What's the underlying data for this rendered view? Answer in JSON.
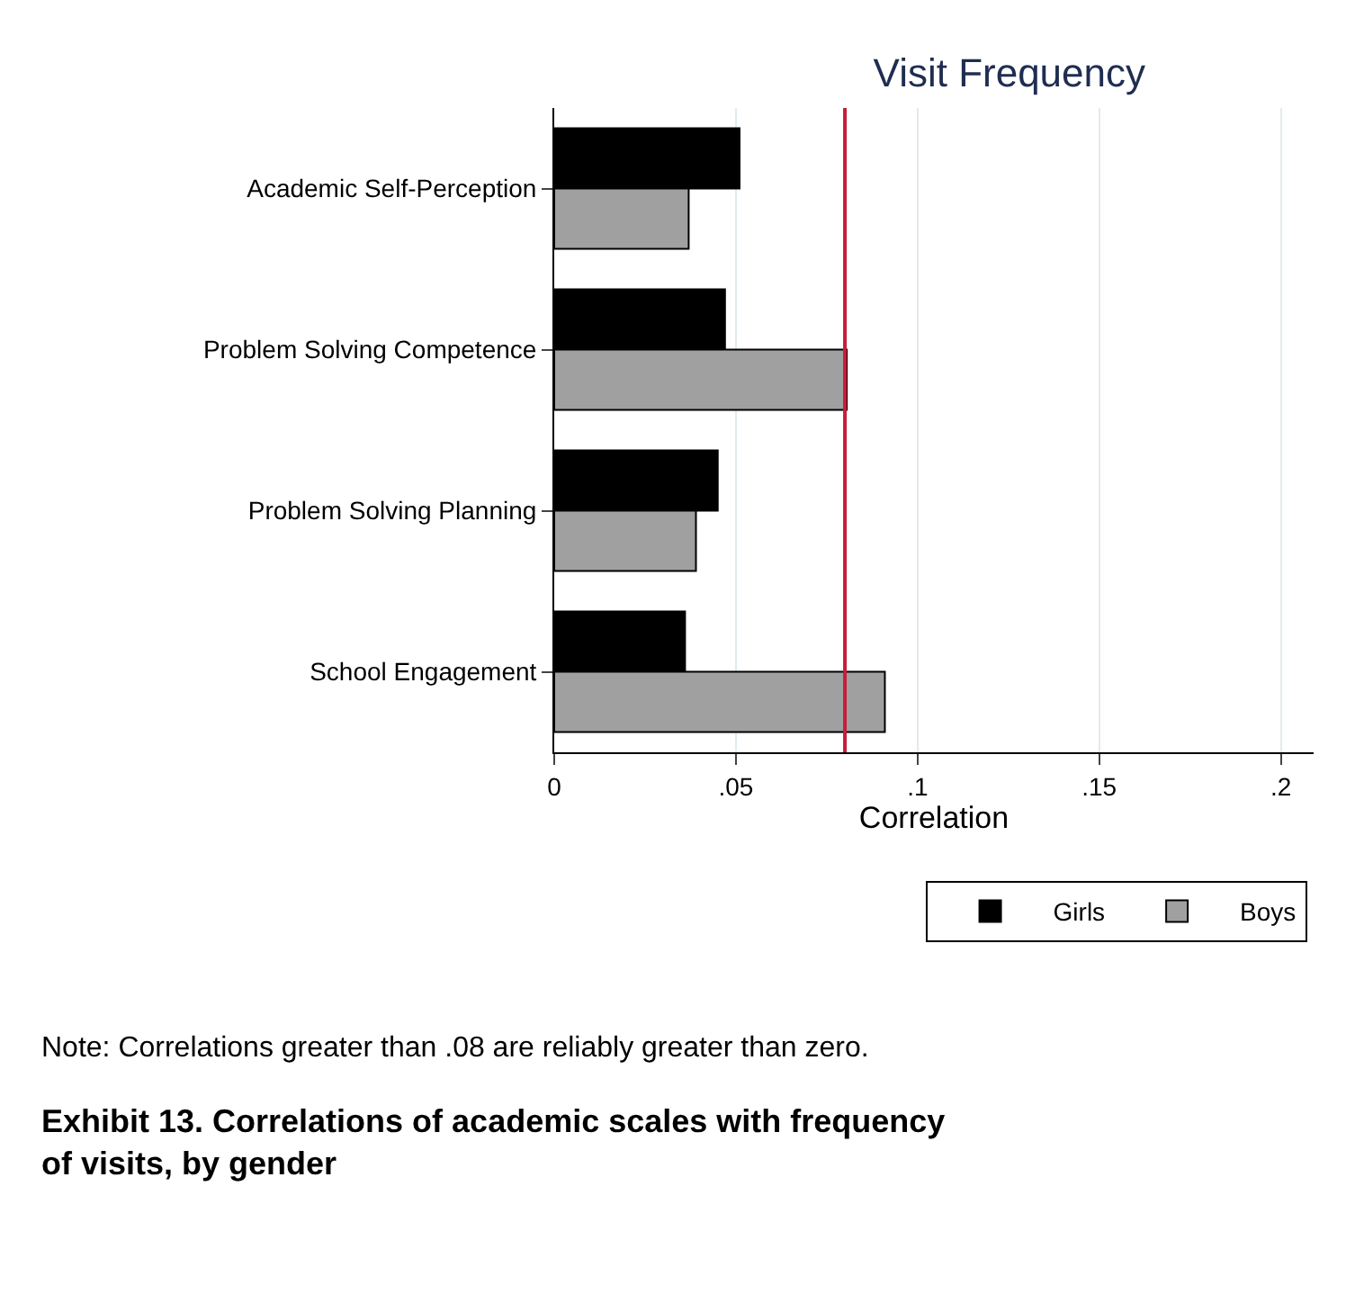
{
  "chart_data": {
    "type": "bar",
    "orientation": "horizontal",
    "title": "Visit Frequency",
    "xlabel": "Correlation",
    "categories": [
      "Academic Self-Perception",
      "Problem Solving Competence",
      "Problem Solving Planning",
      "School Engagement"
    ],
    "series": [
      {
        "name": "Girls",
        "color": "#000000",
        "values": [
          0.051,
          0.047,
          0.045,
          0.036
        ]
      },
      {
        "name": "Boys",
        "color": "#a0a0a0",
        "values": [
          0.037,
          0.0805,
          0.039,
          0.091
        ]
      }
    ],
    "xlim": [
      0,
      0.209
    ],
    "xticks": [
      {
        "value": 0,
        "label": "0"
      },
      {
        "value": 0.05,
        "label": ".05"
      },
      {
        "value": 0.1,
        "label": ".1"
      },
      {
        "value": 0.15,
        "label": ".15"
      },
      {
        "value": 0.2,
        "label": ".2"
      }
    ],
    "grid": "x",
    "legend": "bottom",
    "ref_lines": [
      {
        "axis": "x",
        "value": 0.08,
        "color": "#c41e3a"
      }
    ],
    "annotations": [
      "Note: Correlations greater than .08 are reliably greater than zero.",
      "Exhibit 13. Correlations of academic scales with frequency of visits, by gender"
    ]
  }
}
